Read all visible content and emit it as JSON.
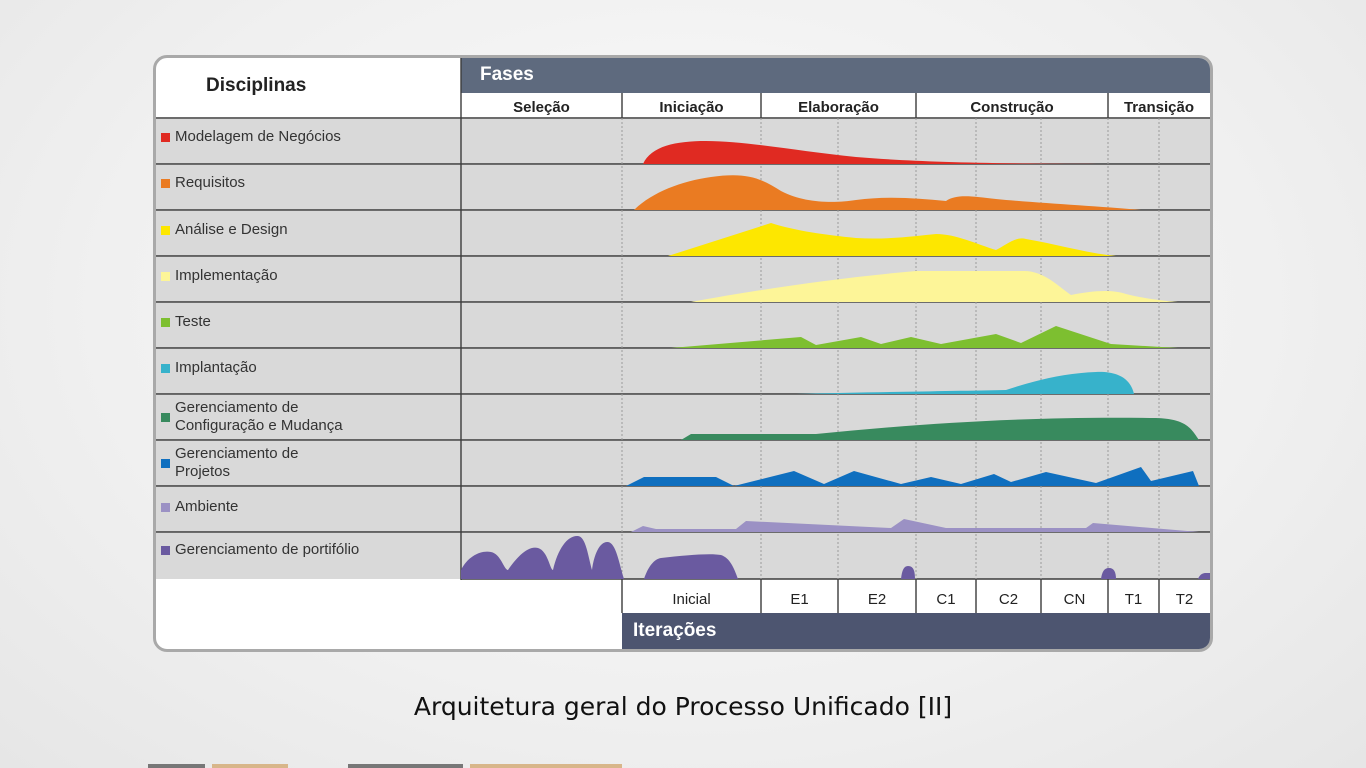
{
  "header": {
    "disciplines_title": "Disciplinas",
    "phases_title": "Fases"
  },
  "phases": [
    {
      "label": "Seleção"
    },
    {
      "label": "Iniciação"
    },
    {
      "label": "Elaboração"
    },
    {
      "label": "Construção"
    },
    {
      "label": "Transição"
    }
  ],
  "disciplines": [
    {
      "label": "Modelagem de Negócios",
      "color": "#e02a22"
    },
    {
      "label": "Requisitos",
      "color": "#ea7b22"
    },
    {
      "label": "Análise e Design",
      "color": "#fde700"
    },
    {
      "label": "Implementação",
      "color": "#fdf598"
    },
    {
      "label": "Teste",
      "color": "#7dbf30"
    },
    {
      "label": "Implantação",
      "color": "#37b2cb"
    },
    {
      "label": "Gerenciamento de Configuração e Mudança",
      "color": "#388a5e"
    },
    {
      "label": "Gerenciamento de Projetos",
      "color": "#0f6fbf"
    },
    {
      "label": "Ambiente",
      "color": "#9b91c4"
    },
    {
      "label": "Gerenciamento de portifólio",
      "color": "#6a5aa0"
    }
  ],
  "iterations": {
    "title": "Iterações",
    "items": [
      "Inicial",
      "E1",
      "E2",
      "C1",
      "C2",
      "CN",
      "T1",
      "T2"
    ]
  },
  "caption": "Arquitetura geral do Processo Unificado [II]",
  "colors": {
    "header_bar": "#5e6a7e",
    "iterations_bar": "#4d5570",
    "row_background": "#d9d9d9"
  }
}
